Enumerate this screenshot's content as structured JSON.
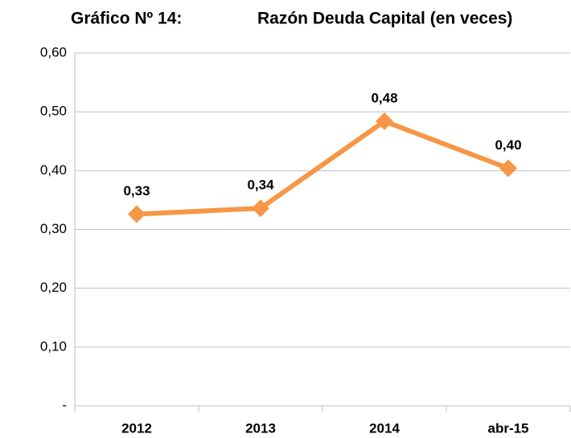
{
  "chart_data": {
    "type": "line",
    "title": "Gráfico Nº 14:",
    "subtitle": "Razón Deuda Capital (en veces)",
    "categories": [
      "2012",
      "2013",
      "2014",
      "abr-15"
    ],
    "series": [
      {
        "name": null,
        "color": "#f79646",
        "values": [
          0.326,
          0.336,
          0.484,
          0.404
        ],
        "value_labels": [
          "0,33",
          "0,34",
          "0,48",
          "0,40"
        ]
      }
    ],
    "ylim": [
      0,
      0.6
    ],
    "yticks": [
      {
        "value": 0,
        "label": "-"
      },
      {
        "value": 0.1,
        "label": "0,10"
      },
      {
        "value": 0.2,
        "label": "0,20"
      },
      {
        "value": 0.3,
        "label": "0,30"
      },
      {
        "value": 0.4,
        "label": "0,40"
      },
      {
        "value": 0.5,
        "label": "0,50"
      },
      {
        "value": 0.6,
        "label": "0,60"
      }
    ],
    "grid": true
  }
}
